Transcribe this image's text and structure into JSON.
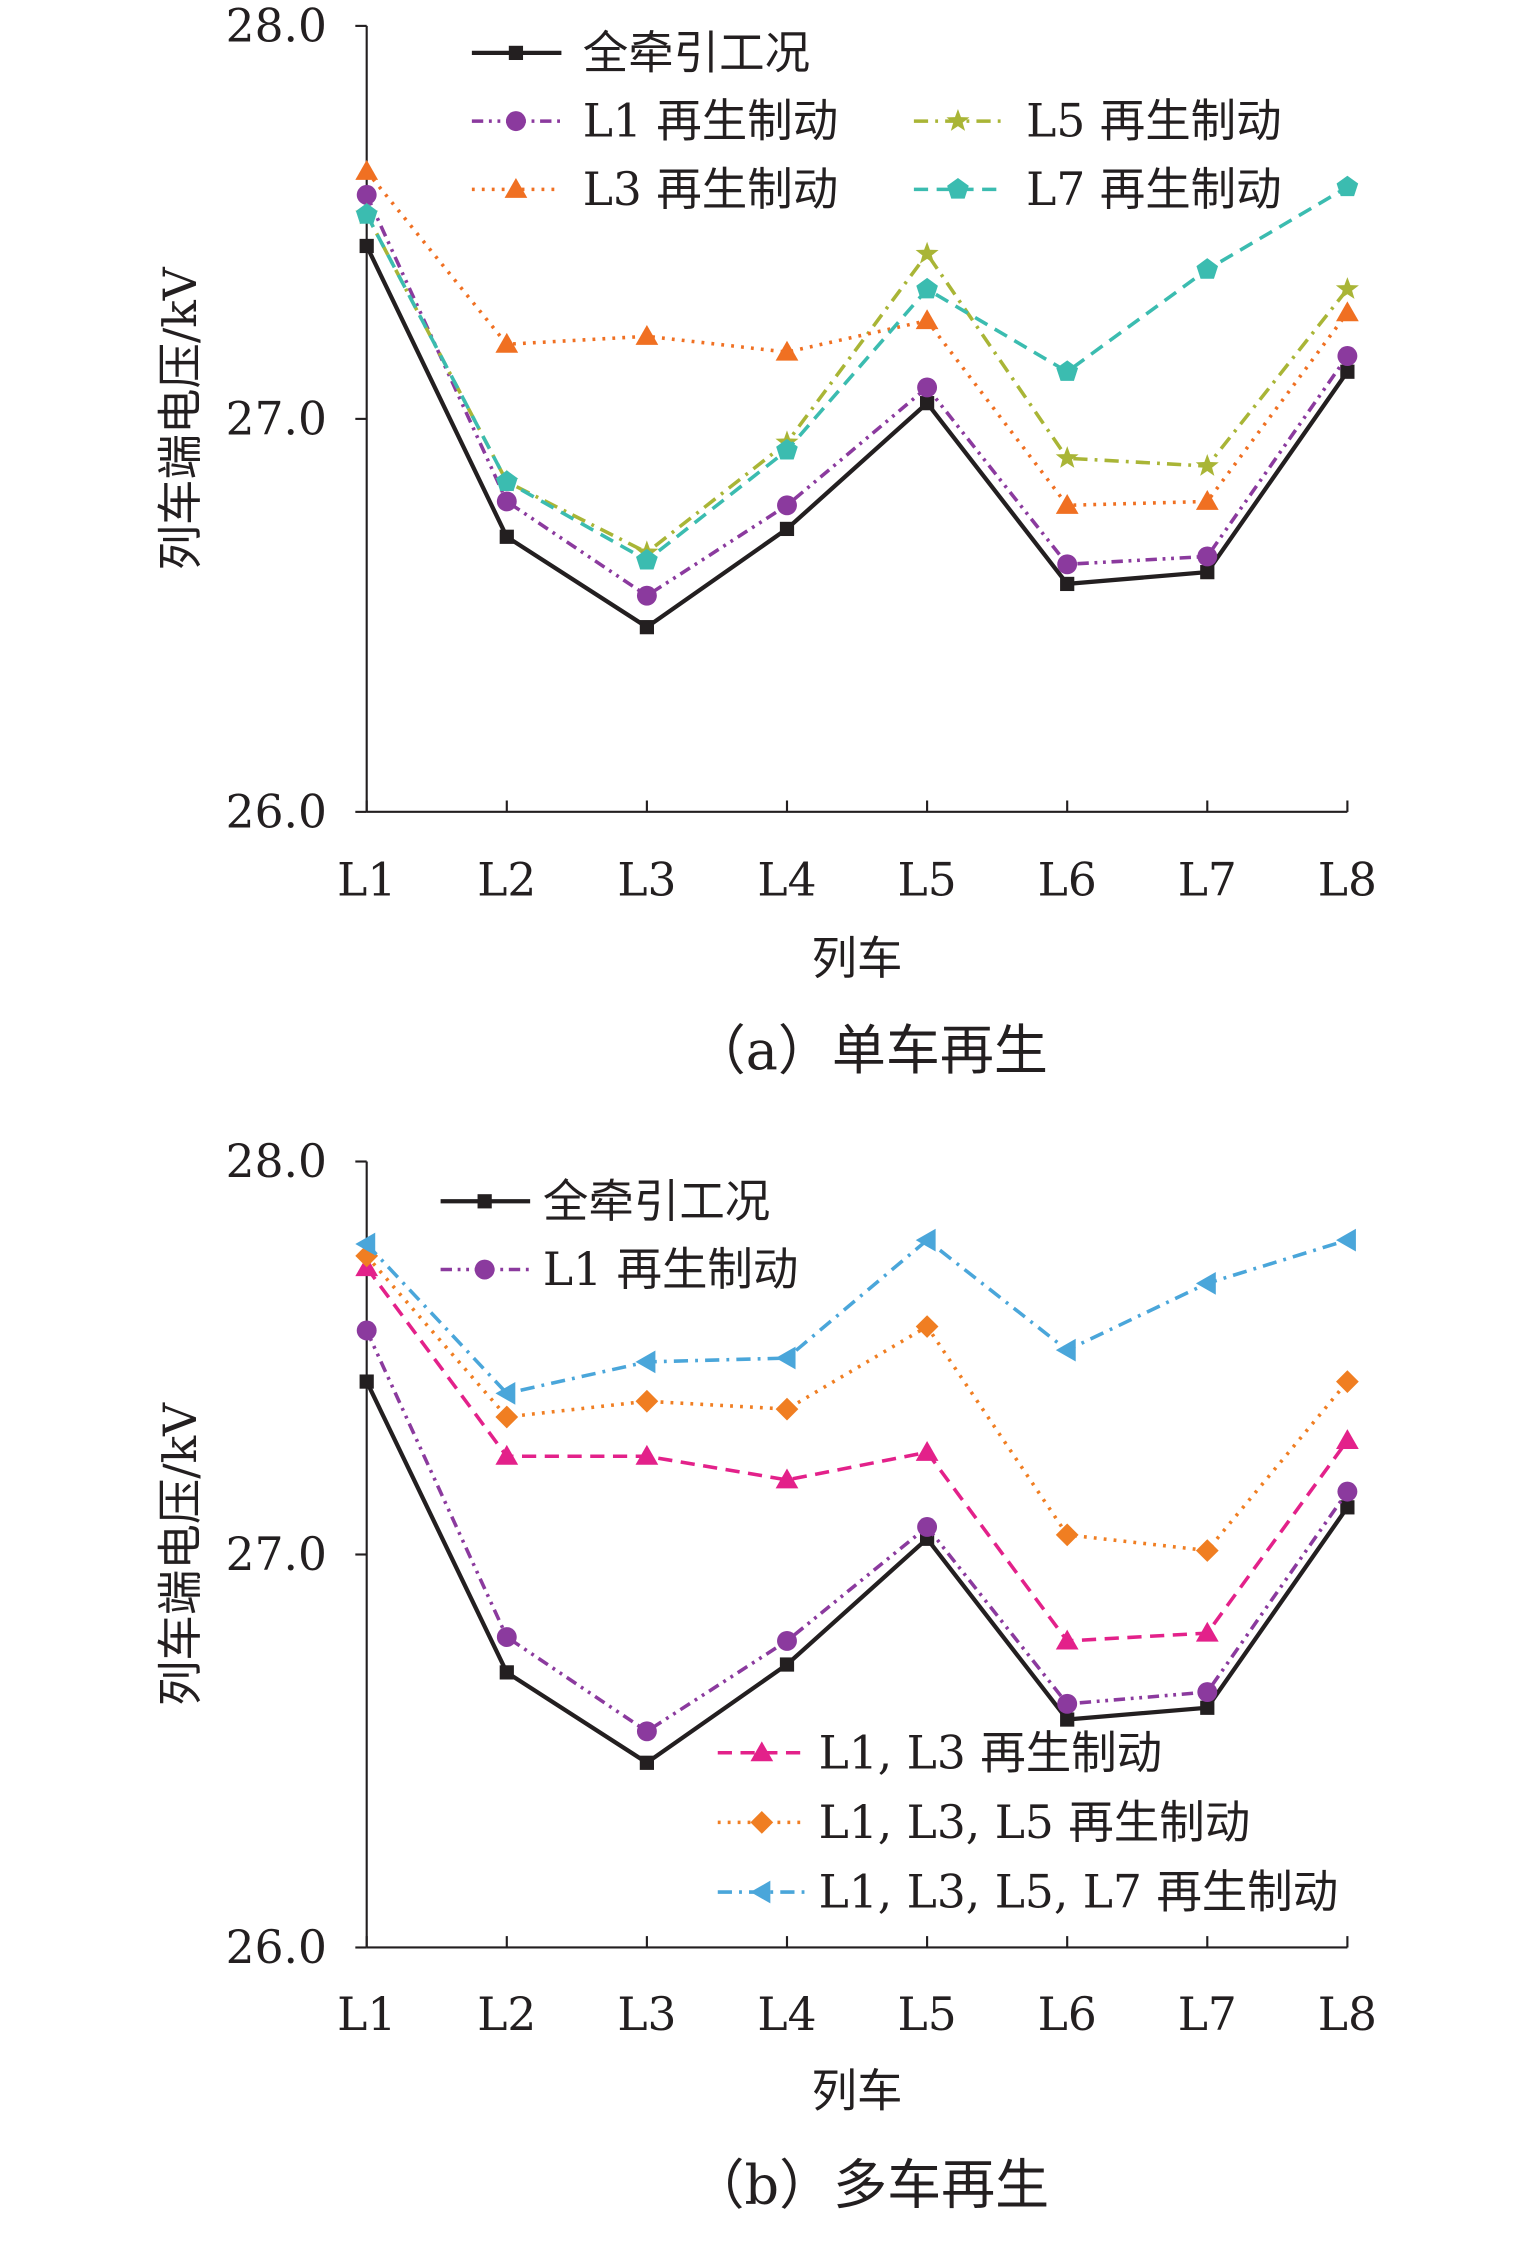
{
  "chart_data": [
    {
      "type": "line",
      "title": "（a）单车再生",
      "xlabel": "列车",
      "ylabel": "列车端电压/kV",
      "ylim": [
        26.0,
        28.0
      ],
      "yticks": [
        "26.0",
        "27.0",
        "28.0"
      ],
      "categories": [
        "L1",
        "L2",
        "L3",
        "L4",
        "L5",
        "L6",
        "L7",
        "L8"
      ],
      "legend_placement": "top",
      "series": [
        {
          "name": "全牵引工况",
          "color": "#231f20",
          "marker": "square",
          "dash": "solid",
          "values": [
            27.44,
            26.7,
            26.47,
            26.72,
            27.04,
            26.58,
            26.61,
            27.12
          ]
        },
        {
          "name": "L1 再生制动",
          "color": "#8b3a9e",
          "marker": "circle",
          "dash": "dash-dot-dot",
          "values": [
            27.57,
            26.79,
            26.55,
            26.78,
            27.08,
            26.63,
            26.65,
            27.16
          ]
        },
        {
          "name": "L5 再生制动",
          "color": "#a9b536",
          "marker": "star",
          "dash": "dash-dot",
          "values": [
            27.52,
            26.84,
            26.66,
            26.94,
            27.42,
            26.9,
            26.88,
            27.33
          ]
        },
        {
          "name": "L3 再生制动",
          "color": "#f07022",
          "marker": "triangle",
          "dash": "dotted",
          "values": [
            27.63,
            27.19,
            27.21,
            27.17,
            27.25,
            26.78,
            26.79,
            27.27
          ]
        },
        {
          "name": "L7 再生制动",
          "color": "#3bbcb0",
          "marker": "pentagon",
          "dash": "dashed",
          "values": [
            27.52,
            26.84,
            26.64,
            26.92,
            27.33,
            27.12,
            27.38,
            27.59
          ]
        }
      ]
    },
    {
      "type": "line",
      "title": "（b）多车再生",
      "xlabel": "列车",
      "ylabel": "列车端电压/kV",
      "ylim": [
        26.0,
        28.0
      ],
      "yticks": [
        "26.0",
        "27.0",
        "28.0"
      ],
      "categories": [
        "L1",
        "L2",
        "L3",
        "L4",
        "L5",
        "L6",
        "L7",
        "L8"
      ],
      "legend_placement": "top-left and bottom-center",
      "series": [
        {
          "name": "全牵引工况",
          "color": "#231f20",
          "marker": "square",
          "dash": "solid",
          "values": [
            27.44,
            26.7,
            26.47,
            26.72,
            27.04,
            26.58,
            26.61,
            27.12
          ]
        },
        {
          "name": "L1 再生制动",
          "color": "#8b3a9e",
          "marker": "circle",
          "dash": "dash-dot-dot",
          "values": [
            27.57,
            26.79,
            26.55,
            26.78,
            27.07,
            26.62,
            26.65,
            27.16
          ]
        },
        {
          "name": "L1, L3 再生制动",
          "color": "#e3218a",
          "marker": "triangle",
          "dash": "dashed",
          "values": [
            27.73,
            27.25,
            27.25,
            27.19,
            27.26,
            26.78,
            26.8,
            27.29
          ]
        },
        {
          "name": "L1, L3, L5 再生制动",
          "color": "#f07e22",
          "marker": "diamond",
          "dash": "dotted",
          "values": [
            27.76,
            27.35,
            27.39,
            27.37,
            27.58,
            27.05,
            27.01,
            27.44
          ]
        },
        {
          "name": "L1, L3, L5, L7 再生制动",
          "color": "#4aa6da",
          "marker": "left-triangle",
          "dash": "dash-dot",
          "values": [
            27.79,
            27.41,
            27.49,
            27.5,
            27.8,
            27.52,
            27.69,
            27.8
          ]
        }
      ]
    }
  ]
}
